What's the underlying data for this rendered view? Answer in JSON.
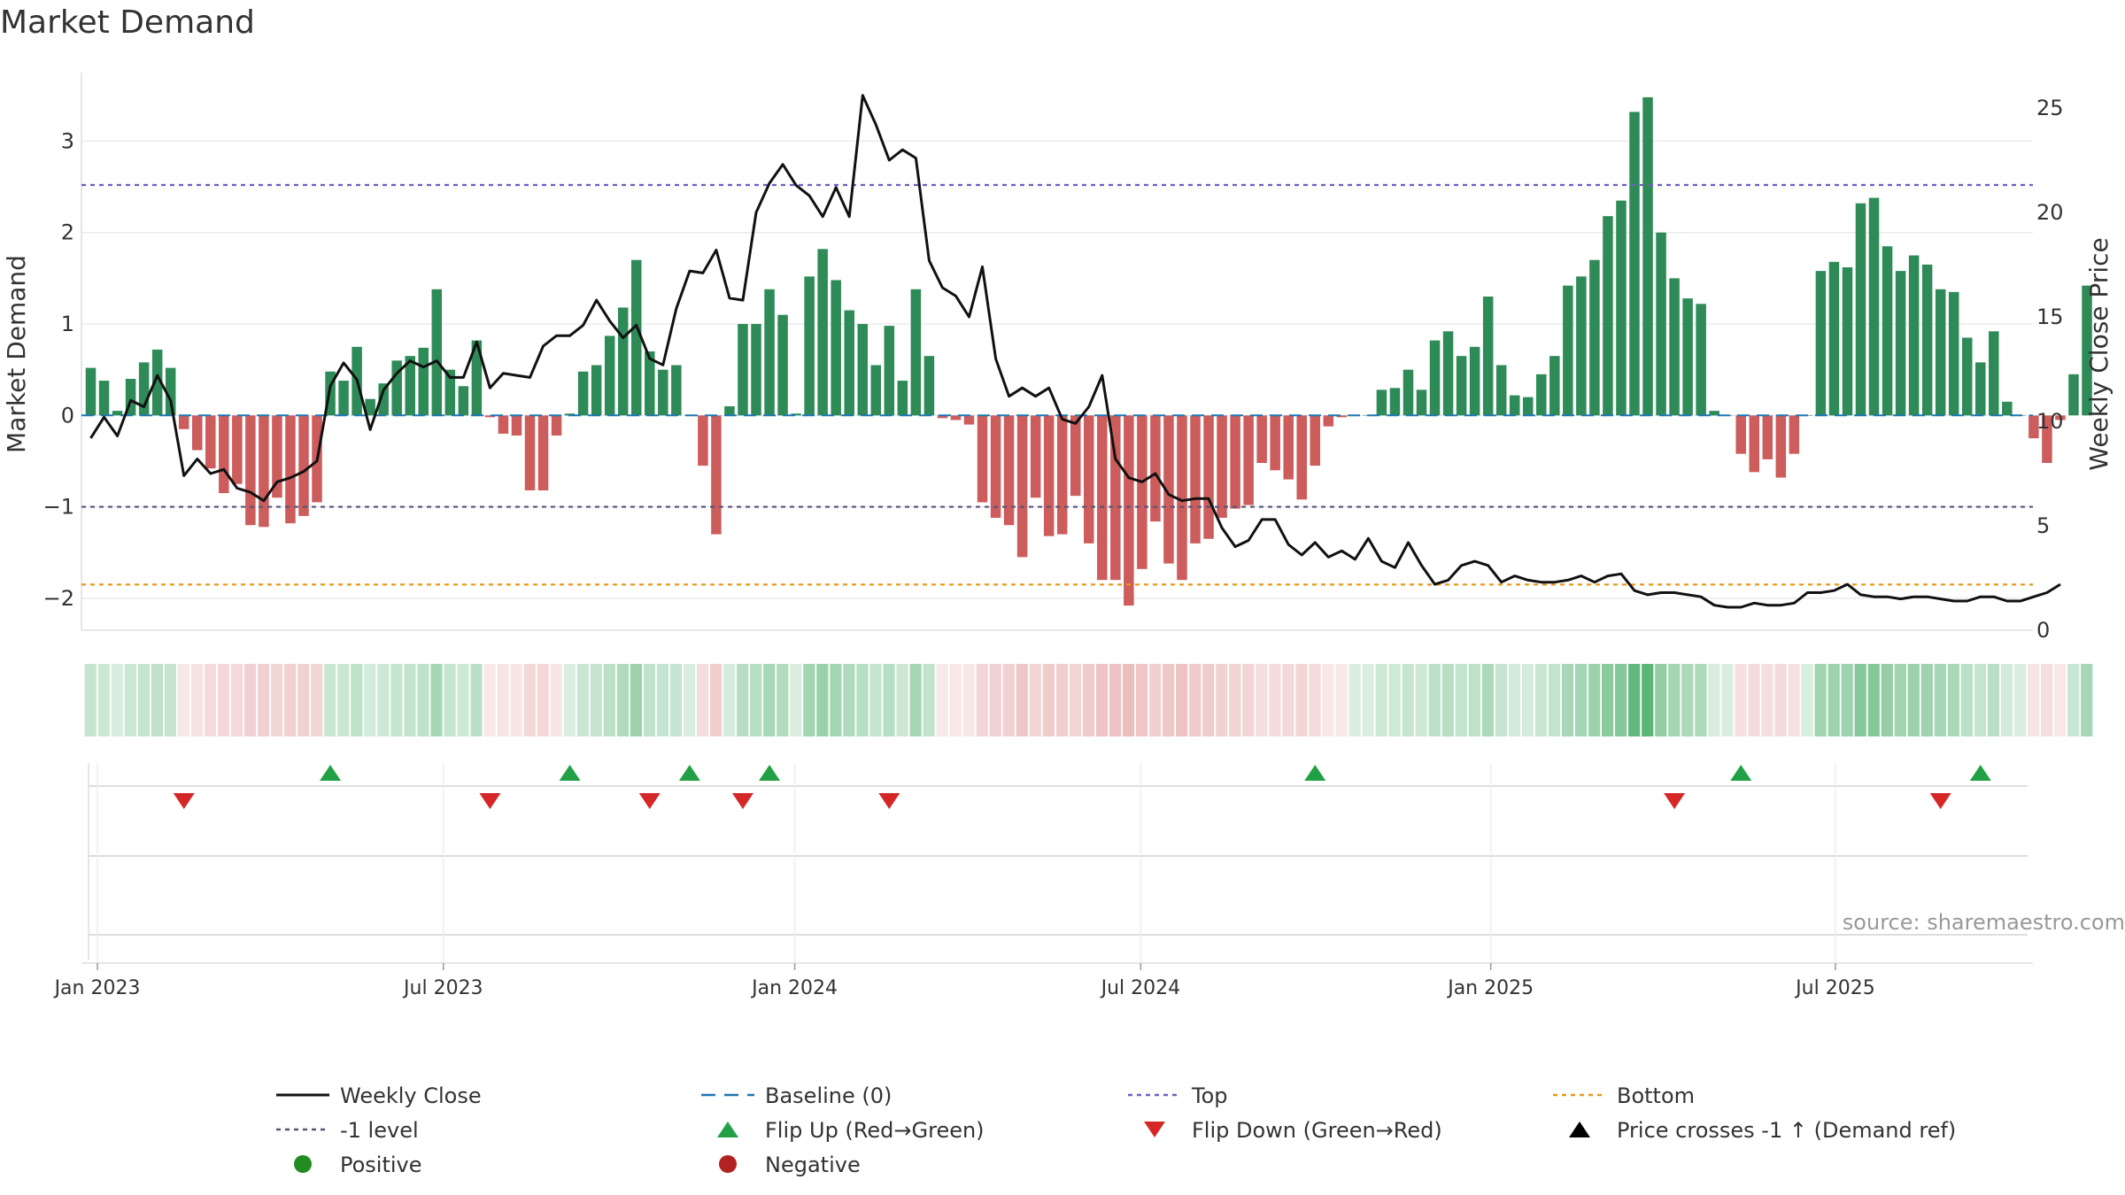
{
  "title": "Market Demand",
  "source": "source: sharemaestro.com",
  "colors": {
    "positive": "#2e8b57",
    "negative": "#cd5c5c",
    "price_line": "#111111",
    "baseline": "#1f77b4",
    "top_line": "#6c5fc4",
    "minus1_line": "#555577",
    "bottom_line": "#e69a1a",
    "flip_up": "#22a045",
    "flip_down": "#d62728",
    "grid": "#e6e6e6"
  },
  "chart_data": {
    "type": "bar",
    "title": "Market Demand",
    "ylabel": "Market Demand",
    "y2label": "Weekly Close Price",
    "ylim": [
      -2.35,
      3.75
    ],
    "y2lim": [
      0,
      26
    ],
    "yticks": [
      -2,
      -1,
      0,
      1,
      2,
      3
    ],
    "yticklabels": [
      "−2",
      "−1",
      "0",
      "1",
      "2",
      "3"
    ],
    "y2ticks": [
      0,
      5,
      10,
      15,
      20,
      25
    ],
    "y2ticklabels": [
      "0",
      "5",
      "10",
      "15",
      "20",
      "25"
    ],
    "x_start": "2022-12-26",
    "week_count": 148,
    "xticks": [
      {
        "label": "Jan 2023",
        "week": 1
      },
      {
        "label": "Jul 2023",
        "week": 27
      },
      {
        "label": "Jan 2024",
        "week": 53.4
      },
      {
        "label": "Jul 2024",
        "week": 79.4
      },
      {
        "label": "Jan 2025",
        "week": 105.7
      },
      {
        "label": "Jul 2025",
        "week": 131.6
      }
    ],
    "reference_lines": {
      "top": 2.52,
      "minus1": -1.0,
      "bottom": -1.85,
      "baseline": 0
    },
    "series": [
      {
        "name": "Market Demand",
        "values": [
          0.52,
          0.38,
          0.05,
          0.4,
          0.58,
          0.72,
          0.52,
          -0.15,
          -0.38,
          -0.58,
          -0.85,
          -0.75,
          -1.2,
          -1.22,
          -0.9,
          -1.18,
          -1.1,
          -0.95,
          0.48,
          0.38,
          0.75,
          0.18,
          0.35,
          0.6,
          0.65,
          0.74,
          1.38,
          0.5,
          0.32,
          0.82,
          -0.02,
          -0.2,
          -0.22,
          -0.82,
          -0.82,
          -0.22,
          0.02,
          0.48,
          0.55,
          0.87,
          1.18,
          1.7,
          0.7,
          0.5,
          0.55,
          0.0,
          -0.55,
          -1.3,
          0.1,
          1.0,
          1.0,
          1.38,
          1.1,
          0.02,
          1.52,
          1.82,
          1.48,
          1.15,
          1.0,
          0.55,
          0.98,
          0.38,
          1.38,
          0.65,
          -0.03,
          -0.05,
          -0.1,
          -0.95,
          -1.12,
          -1.2,
          -1.55,
          -0.9,
          -1.32,
          -1.3,
          -0.88,
          -1.4,
          -1.8,
          -1.8,
          -2.08,
          -1.68,
          -1.16,
          -1.62,
          -1.8,
          -1.4,
          -1.35,
          -1.12,
          -1.02,
          -0.98,
          -0.52,
          -0.6,
          -0.7,
          -0.92,
          -0.55,
          -0.12,
          -0.02,
          0.0,
          0.0,
          0.28,
          0.3,
          0.5,
          0.28,
          0.82,
          0.92,
          0.65,
          0.75,
          1.3,
          0.55,
          0.22,
          0.2,
          0.45,
          0.65,
          1.42,
          1.52,
          1.7,
          2.18,
          2.35,
          3.32,
          3.48,
          2.0,
          1.5,
          1.28,
          1.22,
          0.05,
          0.0,
          -0.42,
          -0.62,
          -0.48,
          -0.68,
          -0.42,
          0.0,
          1.58,
          1.68,
          1.62,
          2.32,
          2.38,
          1.85,
          1.58,
          1.75,
          1.65,
          1.38,
          1.35,
          0.85,
          0.58,
          0.92,
          0.15,
          0.0,
          -0.25,
          -0.52,
          -0.05,
          0.45,
          1.42
        ]
      },
      {
        "name": "Weekly Close",
        "axis": "right",
        "values": [
          9.2,
          10.2,
          9.3,
          11.0,
          10.7,
          12.2,
          11.0,
          7.4,
          8.2,
          7.5,
          7.7,
          6.8,
          6.6,
          6.2,
          7.1,
          7.3,
          7.6,
          8.1,
          11.7,
          12.8,
          12.0,
          9.6,
          11.5,
          12.3,
          12.9,
          12.6,
          12.9,
          12.1,
          12.1,
          13.8,
          11.6,
          12.3,
          12.2,
          12.1,
          13.6,
          14.1,
          14.1,
          14.6,
          15.8,
          14.8,
          14.0,
          14.6,
          13.0,
          12.7,
          15.4,
          17.2,
          17.1,
          18.2,
          15.9,
          15.8,
          20.0,
          21.4,
          22.3,
          21.3,
          20.8,
          19.8,
          21.2,
          19.8,
          25.6,
          24.2,
          22.5,
          23.0,
          22.6,
          17.7,
          16.4,
          16.0,
          15.0,
          17.4,
          13.0,
          11.2,
          11.6,
          11.2,
          11.6,
          10.1,
          9.9,
          10.7,
          12.2,
          8.2,
          7.3,
          7.1,
          7.5,
          6.5,
          6.2,
          6.3,
          6.3,
          4.9,
          4.0,
          4.3,
          5.3,
          5.3,
          4.1,
          3.6,
          4.2,
          3.5,
          3.8,
          3.4,
          4.4,
          3.3,
          3.0,
          4.2,
          3.1,
          2.2,
          2.4,
          3.1,
          3.3,
          3.1,
          2.3,
          2.6,
          2.4,
          2.3,
          2.3,
          2.4,
          2.6,
          2.3,
          2.6,
          2.7,
          1.9,
          1.7,
          1.8,
          1.8,
          1.7,
          1.6,
          1.2,
          1.1,
          1.1,
          1.3,
          1.2,
          1.2,
          1.3,
          1.8,
          1.8,
          1.9,
          2.2,
          1.7,
          1.6,
          1.6,
          1.5,
          1.6,
          1.6,
          1.5,
          1.4,
          1.4,
          1.6,
          1.6,
          1.4,
          1.4,
          1.6,
          1.8,
          2.2
        ]
      }
    ],
    "markers": {
      "flip_up_weeks": [
        18,
        36,
        45,
        51,
        92,
        124,
        142
      ],
      "flip_down_weeks": [
        7,
        30,
        42,
        49,
        60,
        119,
        139
      ]
    }
  },
  "legend": [
    {
      "label": "Weekly Close",
      "symbol": "solid-line",
      "color": "#111111"
    },
    {
      "label": "Baseline (0)",
      "symbol": "dashed-line",
      "color": "#1f77b4"
    },
    {
      "label": "Top",
      "symbol": "dotted-line",
      "color": "#6c5fc4"
    },
    {
      "label": "Bottom",
      "symbol": "dotted-line",
      "color": "#e69a1a"
    },
    {
      "label": "-1 level",
      "symbol": "dotted-line",
      "color": "#555577"
    },
    {
      "label": "Flip Up (Red→Green)",
      "symbol": "triangle-up",
      "color": "#22a045"
    },
    {
      "label": "Flip Down (Green→Red)",
      "symbol": "triangle-down",
      "color": "#d62728"
    },
    {
      "label": "Price crosses -1 ↑ (Demand ref)",
      "symbol": "triangle-up",
      "color": "#000000"
    },
    {
      "label": "Positive",
      "symbol": "circle",
      "color": "#228b22"
    },
    {
      "label": "Negative",
      "symbol": "circle",
      "color": "#b22222"
    }
  ]
}
